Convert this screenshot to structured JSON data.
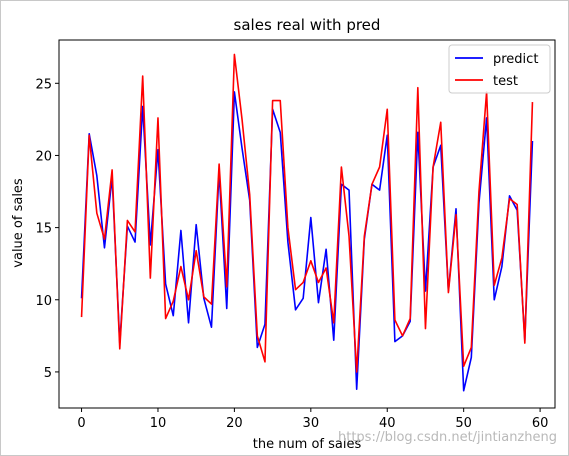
{
  "chart_data": {
    "type": "line",
    "title": "sales real with pred",
    "xlabel": "the num of sales",
    "ylabel": "value of sales",
    "xlim": [
      -2.95,
      61.95
    ],
    "ylim": [
      2.5,
      28.0
    ],
    "xticks": [
      0,
      10,
      20,
      30,
      40,
      50,
      60
    ],
    "yticks": [
      5,
      10,
      15,
      20,
      25
    ],
    "grid": false,
    "legend_position": "top-right",
    "x": [
      0,
      1,
      2,
      3,
      4,
      5,
      6,
      7,
      8,
      9,
      10,
      11,
      12,
      13,
      14,
      15,
      16,
      17,
      18,
      19,
      20,
      21,
      22,
      23,
      24,
      25,
      26,
      27,
      28,
      29,
      30,
      31,
      32,
      33,
      34,
      35,
      36,
      37,
      38,
      39,
      40,
      41,
      42,
      43,
      44,
      45,
      46,
      47,
      48,
      49,
      50,
      51,
      52,
      53,
      54,
      55,
      56,
      57,
      58,
      59
    ],
    "series": [
      {
        "name": "predict",
        "color": "#0000ff",
        "values": [
          10.1,
          21.5,
          18.6,
          13.6,
          18.5,
          7.0,
          15.1,
          14.0,
          23.4,
          13.8,
          20.4,
          11.1,
          8.9,
          14.8,
          8.4,
          15.2,
          10.1,
          8.1,
          18.9,
          9.4,
          24.4,
          20.5,
          16.9,
          6.7,
          8.3,
          23.2,
          21.6,
          14.0,
          9.3,
          10.1,
          15.7,
          9.8,
          13.5,
          7.2,
          18.0,
          17.6,
          3.8,
          14.2,
          18.0,
          17.6,
          21.4,
          7.1,
          7.5,
          8.5,
          21.6,
          10.6,
          19.2,
          20.7,
          10.6,
          16.3,
          3.7,
          6.0,
          16.7,
          22.6,
          10.0,
          12.3,
          17.2,
          16.2,
          7.2,
          21.0
        ]
      },
      {
        "name": "test",
        "color": "#ff0000",
        "values": [
          8.8,
          21.4,
          16.0,
          14.2,
          19.0,
          6.6,
          15.5,
          14.7,
          25.5,
          11.5,
          22.6,
          8.7,
          9.9,
          12.3,
          10.0,
          13.4,
          10.2,
          9.7,
          19.4,
          10.9,
          27.0,
          22.5,
          17.3,
          7.5,
          5.7,
          23.8,
          23.8,
          15.0,
          10.7,
          11.2,
          12.7,
          11.2,
          12.2,
          8.4,
          19.2,
          14.4,
          5.0,
          14.4,
          18.0,
          19.2,
          23.2,
          8.6,
          7.5,
          8.7,
          24.7,
          8.0,
          19.2,
          22.3,
          10.5,
          15.9,
          5.4,
          6.7,
          17.5,
          24.4,
          11.0,
          12.9,
          17.0,
          16.6,
          7.0,
          23.7
        ]
      }
    ]
  },
  "watermark": "https://blog.csdn.net/jintianzheng"
}
